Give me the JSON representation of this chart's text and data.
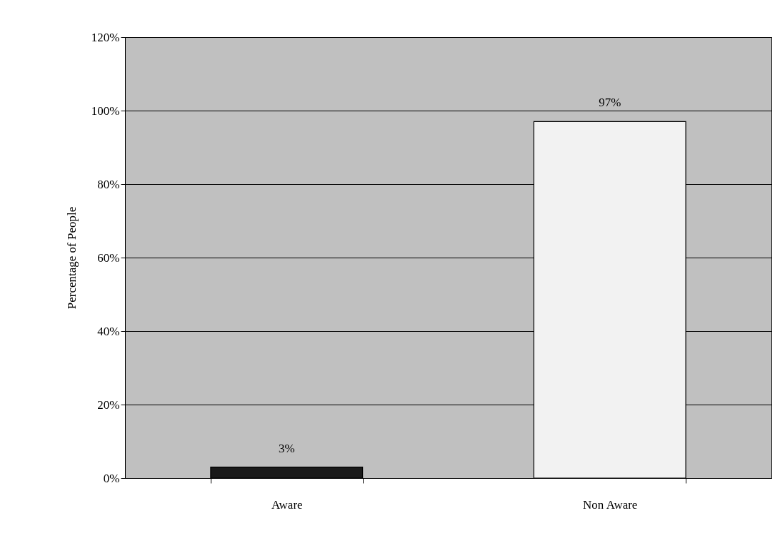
{
  "chart_data": {
    "type": "bar",
    "ylabel": "Percentage of People",
    "categories": [
      "Aware",
      "Non Aware"
    ],
    "values": [
      3,
      97
    ],
    "colors": [
      "#1a1a1a",
      "#f2f2f2"
    ],
    "value_labels": [
      "3%",
      "97%"
    ],
    "ylim": [
      0,
      120
    ],
    "yticks": [
      {
        "value": 0,
        "label": "0%"
      },
      {
        "value": 20,
        "label": "20%"
      },
      {
        "value": 40,
        "label": "40%"
      },
      {
        "value": 60,
        "label": "60%"
      },
      {
        "value": 80,
        "label": "80%"
      },
      {
        "value": 100,
        "label": "100%"
      },
      {
        "value": 120,
        "label": "120%"
      }
    ],
    "grid": "y"
  }
}
